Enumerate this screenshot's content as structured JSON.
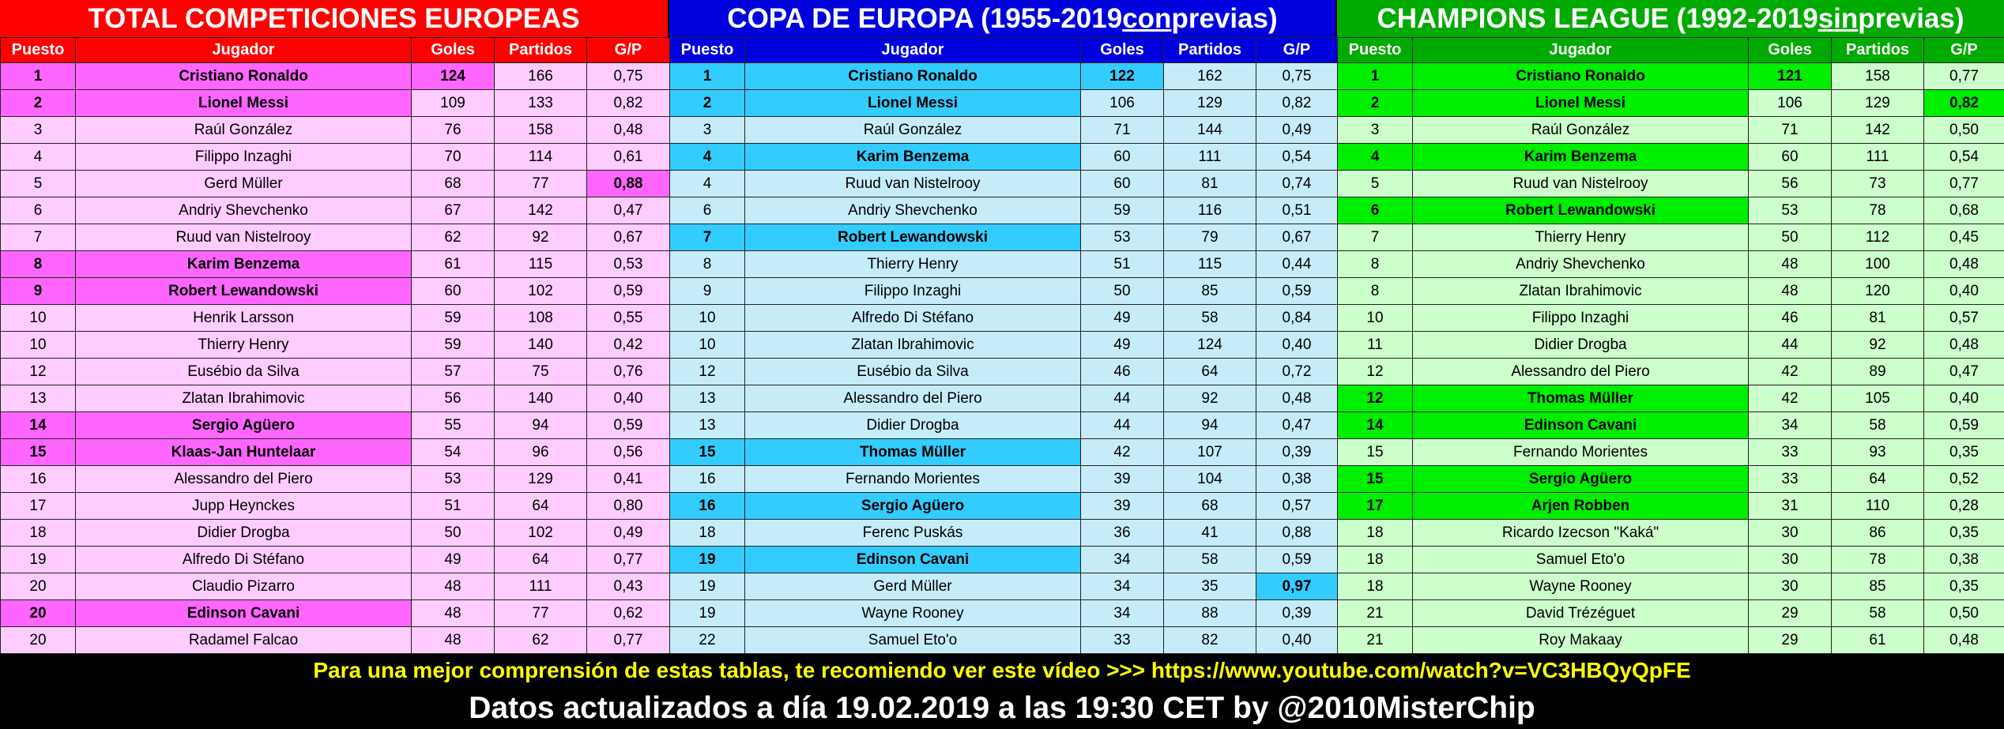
{
  "columns": {
    "puesto": "Puesto",
    "jugador": "Jugador",
    "goles": "Goles",
    "partidos": "Partidos",
    "gp": "G/P"
  },
  "panels": [
    {
      "title_pre": "TOTAL COMPETICIONES EUROPEAS",
      "title_u": "",
      "title_post": "",
      "rows": [
        {
          "pos": "1",
          "name": "Cristiano Ronaldo",
          "goles": "124",
          "partidos": "166",
          "gp": "0,75",
          "hl": true,
          "hl_goles": true,
          "hl_gp": false
        },
        {
          "pos": "2",
          "name": "Lionel Messi",
          "goles": "109",
          "partidos": "133",
          "gp": "0,82",
          "hl": true,
          "hl_goles": false,
          "hl_gp": false
        },
        {
          "pos": "3",
          "name": "Raúl González",
          "goles": "76",
          "partidos": "158",
          "gp": "0,48",
          "hl": false
        },
        {
          "pos": "4",
          "name": "Filippo Inzaghi",
          "goles": "70",
          "partidos": "114",
          "gp": "0,61",
          "hl": false
        },
        {
          "pos": "5",
          "name": "Gerd Müller",
          "goles": "68",
          "partidos": "77",
          "gp": "0,88",
          "hl": false,
          "hl_gp": true
        },
        {
          "pos": "6",
          "name": "Andriy Shevchenko",
          "goles": "67",
          "partidos": "142",
          "gp": "0,47",
          "hl": false
        },
        {
          "pos": "7",
          "name": "Ruud van Nistelrooy",
          "goles": "62",
          "partidos": "92",
          "gp": "0,67",
          "hl": false
        },
        {
          "pos": "8",
          "name": "Karim Benzema",
          "goles": "61",
          "partidos": "115",
          "gp": "0,53",
          "hl": true
        },
        {
          "pos": "9",
          "name": "Robert Lewandowski",
          "goles": "60",
          "partidos": "102",
          "gp": "0,59",
          "hl": true
        },
        {
          "pos": "10",
          "name": "Henrik Larsson",
          "goles": "59",
          "partidos": "108",
          "gp": "0,55",
          "hl": false
        },
        {
          "pos": "10",
          "name": "Thierry Henry",
          "goles": "59",
          "partidos": "140",
          "gp": "0,42",
          "hl": false
        },
        {
          "pos": "12",
          "name": "Eusébio da Silva",
          "goles": "57",
          "partidos": "75",
          "gp": "0,76",
          "hl": false
        },
        {
          "pos": "13",
          "name": "Zlatan Ibrahimovic",
          "goles": "56",
          "partidos": "140",
          "gp": "0,40",
          "hl": false
        },
        {
          "pos": "14",
          "name": "Sergio Agüero",
          "goles": "55",
          "partidos": "94",
          "gp": "0,59",
          "hl": true
        },
        {
          "pos": "15",
          "name": "Klaas-Jan Huntelaar",
          "goles": "54",
          "partidos": "96",
          "gp": "0,56",
          "hl": true
        },
        {
          "pos": "16",
          "name": "Alessandro del Piero",
          "goles": "53",
          "partidos": "129",
          "gp": "0,41",
          "hl": false
        },
        {
          "pos": "17",
          "name": "Jupp Heynckes",
          "goles": "51",
          "partidos": "64",
          "gp": "0,80",
          "hl": false
        },
        {
          "pos": "18",
          "name": "Didier Drogba",
          "goles": "50",
          "partidos": "102",
          "gp": "0,49",
          "hl": false
        },
        {
          "pos": "19",
          "name": "Alfredo Di Stéfano",
          "goles": "49",
          "partidos": "64",
          "gp": "0,77",
          "hl": false
        },
        {
          "pos": "20",
          "name": "Claudio Pizarro",
          "goles": "48",
          "partidos": "111",
          "gp": "0,43",
          "hl": false
        },
        {
          "pos": "20",
          "name": "Edinson Cavani",
          "goles": "48",
          "partidos": "77",
          "gp": "0,62",
          "hl": true
        },
        {
          "pos": "20",
          "name": "Radamel Falcao",
          "goles": "48",
          "partidos": "62",
          "gp": "0,77",
          "hl": false
        }
      ]
    },
    {
      "title_pre": "COPA DE EUROPA (1955-2019 ",
      "title_u": "con",
      "title_post": " previas)",
      "rows": [
        {
          "pos": "1",
          "name": "Cristiano Ronaldo",
          "goles": "122",
          "partidos": "162",
          "gp": "0,75",
          "hl": true,
          "hl_goles": true
        },
        {
          "pos": "2",
          "name": "Lionel Messi",
          "goles": "106",
          "partidos": "129",
          "gp": "0,82",
          "hl": true
        },
        {
          "pos": "3",
          "name": "Raúl González",
          "goles": "71",
          "partidos": "144",
          "gp": "0,49",
          "hl": false
        },
        {
          "pos": "4",
          "name": "Karim Benzema",
          "goles": "60",
          "partidos": "111",
          "gp": "0,54",
          "hl": true
        },
        {
          "pos": "4",
          "name": "Ruud van Nistelrooy",
          "goles": "60",
          "partidos": "81",
          "gp": "0,74",
          "hl": false
        },
        {
          "pos": "6",
          "name": "Andriy Shevchenko",
          "goles": "59",
          "partidos": "116",
          "gp": "0,51",
          "hl": false
        },
        {
          "pos": "7",
          "name": "Robert Lewandowski",
          "goles": "53",
          "partidos": "79",
          "gp": "0,67",
          "hl": true
        },
        {
          "pos": "8",
          "name": "Thierry Henry",
          "goles": "51",
          "partidos": "115",
          "gp": "0,44",
          "hl": false
        },
        {
          "pos": "9",
          "name": "Filippo Inzaghi",
          "goles": "50",
          "partidos": "85",
          "gp": "0,59",
          "hl": false
        },
        {
          "pos": "10",
          "name": "Alfredo Di Stéfano",
          "goles": "49",
          "partidos": "58",
          "gp": "0,84",
          "hl": false
        },
        {
          "pos": "10",
          "name": "Zlatan Ibrahimovic",
          "goles": "49",
          "partidos": "124",
          "gp": "0,40",
          "hl": false
        },
        {
          "pos": "12",
          "name": "Eusébio da Silva",
          "goles": "46",
          "partidos": "64",
          "gp": "0,72",
          "hl": false
        },
        {
          "pos": "13",
          "name": "Alessandro del Piero",
          "goles": "44",
          "partidos": "92",
          "gp": "0,48",
          "hl": false
        },
        {
          "pos": "13",
          "name": "Didier Drogba",
          "goles": "44",
          "partidos": "94",
          "gp": "0,47",
          "hl": false
        },
        {
          "pos": "15",
          "name": "Thomas Müller",
          "goles": "42",
          "partidos": "107",
          "gp": "0,39",
          "hl": true
        },
        {
          "pos": "16",
          "name": "Fernando Morientes",
          "goles": "39",
          "partidos": "104",
          "gp": "0,38",
          "hl": false
        },
        {
          "pos": "16",
          "name": "Sergio Agüero",
          "goles": "39",
          "partidos": "68",
          "gp": "0,57",
          "hl": true
        },
        {
          "pos": "18",
          "name": "Ferenc Puskás",
          "goles": "36",
          "partidos": "41",
          "gp": "0,88",
          "hl": false
        },
        {
          "pos": "19",
          "name": "Edinson Cavani",
          "goles": "34",
          "partidos": "58",
          "gp": "0,59",
          "hl": true
        },
        {
          "pos": "19",
          "name": "Gerd Müller",
          "goles": "34",
          "partidos": "35",
          "gp": "0,97",
          "hl": false,
          "hl_gp": true
        },
        {
          "pos": "19",
          "name": "Wayne Rooney",
          "goles": "34",
          "partidos": "88",
          "gp": "0,39",
          "hl": false
        },
        {
          "pos": "22",
          "name": "Samuel Eto'o",
          "goles": "33",
          "partidos": "82",
          "gp": "0,40",
          "hl": false
        }
      ]
    },
    {
      "title_pre": "CHAMPIONS LEAGUE (1992-2019 ",
      "title_u": "sin",
      "title_post": " previas)",
      "rows": [
        {
          "pos": "1",
          "name": "Cristiano Ronaldo",
          "goles": "121",
          "partidos": "158",
          "gp": "0,77",
          "hl": true,
          "hl_goles": true
        },
        {
          "pos": "2",
          "name": "Lionel Messi",
          "goles": "106",
          "partidos": "129",
          "gp": "0,82",
          "hl": true,
          "hl_gp": true
        },
        {
          "pos": "3",
          "name": "Raúl González",
          "goles": "71",
          "partidos": "142",
          "gp": "0,50",
          "hl": false
        },
        {
          "pos": "4",
          "name": "Karim Benzema",
          "goles": "60",
          "partidos": "111",
          "gp": "0,54",
          "hl": true
        },
        {
          "pos": "5",
          "name": "Ruud van Nistelrooy",
          "goles": "56",
          "partidos": "73",
          "gp": "0,77",
          "hl": false
        },
        {
          "pos": "6",
          "name": "Robert Lewandowski",
          "goles": "53",
          "partidos": "78",
          "gp": "0,68",
          "hl": true
        },
        {
          "pos": "7",
          "name": "Thierry Henry",
          "goles": "50",
          "partidos": "112",
          "gp": "0,45",
          "hl": false
        },
        {
          "pos": "8",
          "name": "Andriy Shevchenko",
          "goles": "48",
          "partidos": "100",
          "gp": "0,48",
          "hl": false
        },
        {
          "pos": "8",
          "name": "Zlatan Ibrahimovic",
          "goles": "48",
          "partidos": "120",
          "gp": "0,40",
          "hl": false
        },
        {
          "pos": "10",
          "name": "Filippo Inzaghi",
          "goles": "46",
          "partidos": "81",
          "gp": "0,57",
          "hl": false
        },
        {
          "pos": "11",
          "name": "Didier Drogba",
          "goles": "44",
          "partidos": "92",
          "gp": "0,48",
          "hl": false
        },
        {
          "pos": "12",
          "name": "Alessandro del Piero",
          "goles": "42",
          "partidos": "89",
          "gp": "0,47",
          "hl": false
        },
        {
          "pos": "12",
          "name": "Thomas Müller",
          "goles": "42",
          "partidos": "105",
          "gp": "0,40",
          "hl": true
        },
        {
          "pos": "14",
          "name": "Edinson Cavani",
          "goles": "34",
          "partidos": "58",
          "gp": "0,59",
          "hl": true
        },
        {
          "pos": "15",
          "name": "Fernando Morientes",
          "goles": "33",
          "partidos": "93",
          "gp": "0,35",
          "hl": false
        },
        {
          "pos": "15",
          "name": "Sergio Agüero",
          "goles": "33",
          "partidos": "64",
          "gp": "0,52",
          "hl": true
        },
        {
          "pos": "17",
          "name": "Arjen Robben",
          "goles": "31",
          "partidos": "110",
          "gp": "0,28",
          "hl": true
        },
        {
          "pos": "18",
          "name": "Ricardo Izecson \"Kaká\"",
          "goles": "30",
          "partidos": "86",
          "gp": "0,35",
          "hl": false
        },
        {
          "pos": "18",
          "name": "Samuel Eto'o",
          "goles": "30",
          "partidos": "78",
          "gp": "0,38",
          "hl": false
        },
        {
          "pos": "18",
          "name": "Wayne Rooney",
          "goles": "30",
          "partidos": "85",
          "gp": "0,35",
          "hl": false
        },
        {
          "pos": "21",
          "name": "David Trézéguet",
          "goles": "29",
          "partidos": "58",
          "gp": "0,50",
          "hl": false
        },
        {
          "pos": "21",
          "name": "Roy Makaay",
          "goles": "29",
          "partidos": "61",
          "gp": "0,48",
          "hl": false
        }
      ]
    }
  ],
  "footer": {
    "video_note": "Para una mejor comprensión de estas tablas, te recomiendo ver este vídeo >>> https://www.youtube.com/watch?v=VC3HBQyQpFE",
    "updated": "Datos actualizados a día 19.02.2019 a las 19:30 CET by @2010MisterChip"
  }
}
